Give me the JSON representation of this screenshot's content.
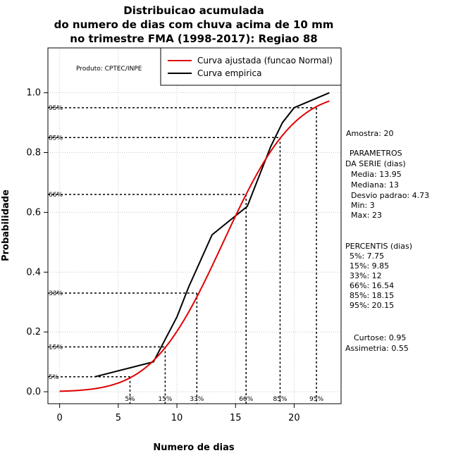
{
  "chart_data": {
    "type": "line",
    "title_lines": [
      "Distribuicao acumulada",
      "do numero de dias com chuva acima de 10 mm",
      "no trimestre FMA (1998-2017): Regiao 88"
    ],
    "xlabel": "Numero de dias",
    "ylabel": "Probabilidade",
    "xlim": [
      -1,
      24
    ],
    "ylim": [
      -0.04,
      1.15
    ],
    "xticks": [
      0,
      5,
      10,
      15,
      20
    ],
    "yticks": [
      0.0,
      0.2,
      0.4,
      0.6,
      0.8,
      1.0
    ],
    "ytick_labels": [
      "0.0",
      "0.2",
      "0.4",
      "0.6",
      "0.8",
      "1.0"
    ],
    "grid": true,
    "product_label": "Produto: CPTEC/INPE",
    "legend": {
      "position": "top-right",
      "entries": [
        {
          "label": "Curva ajustada (funcao Normal)",
          "color": "#e00000"
        },
        {
          "label": "Curva empirica",
          "color": "#000000"
        }
      ]
    },
    "series": [
      {
        "name": "Curva empirica",
        "color": "#000000",
        "x": [
          3,
          8,
          10,
          11,
          13,
          16,
          18,
          19,
          20,
          23
        ],
        "y": [
          0.05,
          0.1,
          0.25,
          0.35,
          0.525,
          0.62,
          0.82,
          0.9,
          0.95,
          1.0
        ]
      },
      {
        "name": "Curva ajustada (funcao Normal)",
        "color": "#e00000",
        "mean": 13.95,
        "sd": 4.73,
        "x_range": [
          0,
          23
        ]
      }
    ],
    "percentile_lines": [
      {
        "label": "5%",
        "prob": 0.05,
        "x": 6
      },
      {
        "label": "15%",
        "prob": 0.15,
        "x": 9
      },
      {
        "label": "33%",
        "prob": 0.33,
        "x": 11.7
      },
      {
        "label": "66%",
        "prob": 0.66,
        "x": 15.9
      },
      {
        "label": "85%",
        "prob": 0.85,
        "x": 18.8
      },
      {
        "label": "95%",
        "prob": 0.95,
        "x": 21.9
      }
    ],
    "side_panel": {
      "amostra": "Amostra: 20",
      "param_header_1": "PARAMETROS",
      "param_header_2": "DA SERIE (dias)",
      "params": [
        "Media: 13.95",
        "Mediana: 13",
        "Desvio padrao: 4.73",
        "Min: 3",
        "Max: 23"
      ],
      "perc_header": "PERCENTIS (dias)",
      "percentis": [
        "5%: 7.75",
        "15%: 9.85",
        "33%: 12",
        "66%: 16.54",
        "85%: 18.15",
        "95%: 20.15"
      ],
      "curtose": "Curtose: 0.95",
      "assimetria": "Assimetria: 0.55"
    }
  }
}
